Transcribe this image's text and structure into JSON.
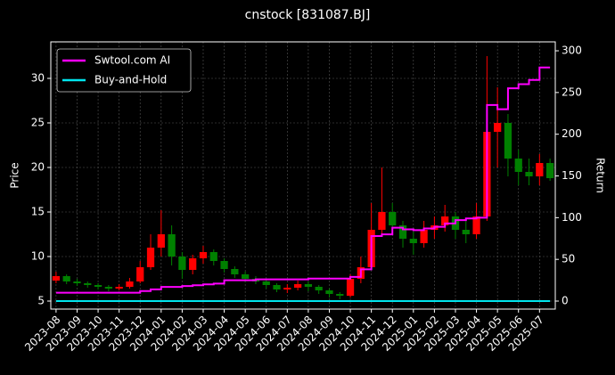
{
  "chart_data": {
    "type": "candlestick",
    "title": "cnstock [831087.BJ]",
    "ylabel": "Price",
    "y2label": "Return",
    "categories": [
      "2023-08",
      null,
      "2023-09",
      null,
      "2023-10",
      null,
      "2023-11",
      null,
      "2023-12",
      null,
      "2024-01",
      null,
      "2024-02",
      null,
      "2024-03",
      null,
      "2024-04",
      null,
      "2024-05",
      null,
      "2024-06",
      null,
      "2024-07",
      null,
      "2024-08",
      null,
      "2024-09",
      null,
      "2024-10",
      null,
      "2024-11",
      null,
      "2024-12",
      null,
      "2025-01",
      null,
      "2025-02",
      null,
      "2025-03",
      null,
      "2025-04",
      null,
      "2025-05",
      null,
      "2025-06",
      null,
      "2025-07",
      null
    ],
    "candles": {
      "open": [
        7.3,
        7.8,
        7.2,
        7.0,
        6.8,
        6.6,
        6.4,
        6.6,
        7.2,
        8.8,
        11.0,
        12.5,
        10.0,
        8.5,
        9.8,
        10.5,
        9.5,
        8.6,
        8.0,
        7.5,
        7.2,
        6.8,
        6.3,
        6.5,
        6.9,
        6.6,
        6.2,
        5.8,
        5.6,
        7.5,
        8.8,
        13.0,
        15.0,
        13.5,
        12.0,
        11.5,
        13.0,
        13.5,
        14.5,
        13.0,
        12.5,
        14.5,
        24.0,
        25.0,
        21.0,
        19.5,
        19.0,
        20.5
      ],
      "high": [
        8.3,
        8.0,
        7.5,
        7.2,
        7.0,
        6.8,
        6.9,
        7.6,
        9.5,
        12.5,
        15.2,
        13.5,
        10.5,
        10.2,
        11.2,
        10.8,
        9.8,
        8.9,
        8.3,
        7.8,
        7.4,
        7.0,
        6.9,
        7.3,
        7.2,
        6.8,
        6.4,
        6.0,
        8.0,
        10.0,
        16.0,
        20.0,
        16.0,
        14.0,
        12.8,
        14.0,
        14.5,
        15.8,
        15.0,
        14.0,
        16.0,
        32.5,
        29.0,
        26.0,
        22.0,
        21.0,
        21.5,
        21.0
      ],
      "low": [
        7.0,
        6.9,
        6.7,
        6.5,
        6.3,
        6.1,
        6.2,
        6.4,
        7.0,
        8.5,
        10.0,
        9.0,
        7.5,
        8.0,
        9.2,
        9.0,
        8.2,
        7.6,
        7.1,
        6.9,
        6.4,
        6.0,
        5.9,
        6.2,
        6.1,
        5.8,
        5.4,
        5.2,
        5.4,
        7.0,
        8.5,
        12.5,
        12.5,
        11.0,
        10.2,
        11.0,
        12.0,
        12.8,
        12.0,
        11.5,
        12.0,
        14.0,
        20.0,
        19.0,
        18.0,
        18.0,
        18.0,
        18.5
      ],
      "close": [
        7.8,
        7.2,
        7.0,
        6.8,
        6.6,
        6.4,
        6.6,
        7.2,
        8.8,
        11.0,
        12.5,
        10.0,
        8.5,
        9.8,
        10.5,
        9.5,
        8.6,
        8.0,
        7.5,
        7.2,
        6.8,
        6.3,
        6.5,
        6.9,
        6.6,
        6.2,
        5.8,
        5.6,
        7.5,
        8.8,
        13.0,
        15.0,
        13.5,
        12.0,
        11.5,
        13.0,
        13.5,
        14.5,
        13.0,
        12.5,
        14.5,
        24.0,
        25.0,
        21.0,
        19.5,
        19.0,
        20.5,
        18.8
      ],
      "up_color": "#ff0000",
      "down_color": "#008000"
    },
    "series": [
      {
        "name": "Swtool.com AI",
        "color": "#ff00ff",
        "axis": "y2",
        "values": [
          10,
          10,
          10,
          10,
          10,
          10,
          10,
          10,
          12,
          14,
          17,
          17,
          18,
          19,
          20,
          21,
          25,
          25,
          25,
          26,
          26,
          26,
          26,
          26,
          27,
          27,
          27,
          27,
          29,
          38,
          78,
          80,
          88,
          86,
          85,
          87,
          89,
          93,
          97,
          99,
          100,
          235,
          230,
          255,
          260,
          265,
          280,
          280
        ]
      },
      {
        "name": "Buy-and-Hold",
        "color": "#00e5ee",
        "axis": "y2",
        "values": [
          0,
          0,
          0,
          0,
          0,
          0,
          0,
          0,
          0,
          0,
          0,
          0,
          0,
          0,
          0,
          0,
          0,
          0,
          0,
          0,
          0,
          0,
          0,
          0,
          0,
          0,
          0,
          0,
          0,
          0,
          0,
          0,
          0,
          0,
          0,
          0,
          0,
          0,
          0,
          0,
          0,
          0,
          0,
          0,
          0,
          0,
          0,
          0
        ]
      }
    ],
    "ylim": [
      4.1,
      34.1
    ],
    "yticks": [
      5,
      10,
      15,
      20,
      25,
      30
    ],
    "y2lim": [
      -9.6,
      310.7
    ],
    "y2ticks": [
      0,
      50,
      100,
      150,
      200,
      250,
      300
    ],
    "grid": true,
    "legend": "upper left"
  }
}
